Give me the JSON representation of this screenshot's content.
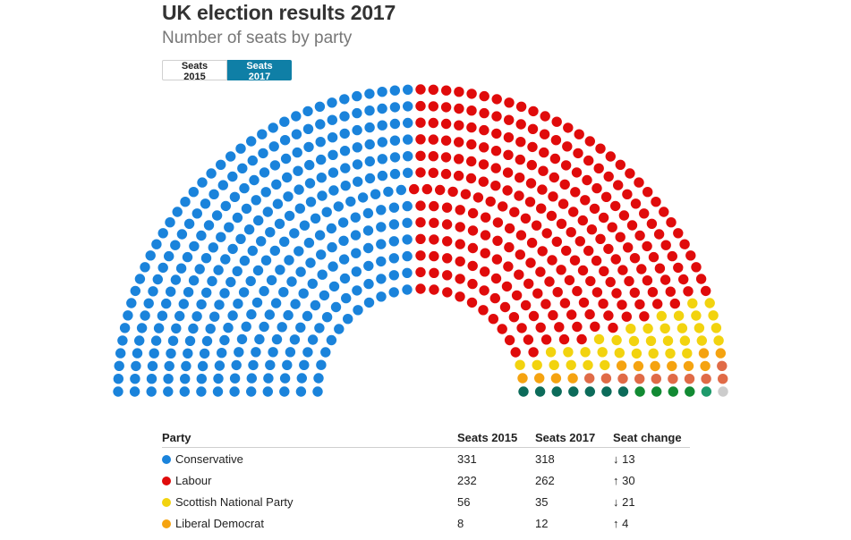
{
  "header": {
    "title": "UK election results 2017",
    "subtitle": "Number of seats by party"
  },
  "toggle": {
    "options": [
      "Seats 2015",
      "Seats 2017"
    ],
    "selected": "Seats 2017"
  },
  "table": {
    "headers": [
      "Party",
      "Seats 2015",
      "Seats 2017",
      "Seat change"
    ],
    "rows": [
      {
        "party": "Conservative",
        "color": "#1a83db",
        "seats2015": "331",
        "seats2017": "318",
        "change": "↓ 13",
        "direction": "down"
      },
      {
        "party": "Labour",
        "color": "#e00b0b",
        "seats2015": "232",
        "seats2017": "262",
        "change": "↑ 30",
        "direction": "up"
      },
      {
        "party": "Scottish National Party",
        "color": "#f2d30f",
        "seats2015": "56",
        "seats2017": "35",
        "change": "↓ 21",
        "direction": "down"
      },
      {
        "party": "Liberal Democrat",
        "color": "#f5a310",
        "seats2015": "8",
        "seats2017": "12",
        "change": "↑ 4",
        "direction": "up"
      }
    ]
  },
  "chart_data": {
    "type": "parliament",
    "title": "UK election results 2017",
    "subtitle": "Number of seats by party",
    "total_seats": 650,
    "series": [
      {
        "name": "Conservative",
        "seats": 318,
        "color": "#1a83db"
      },
      {
        "name": "Labour",
        "seats": 262,
        "color": "#e00b0b"
      },
      {
        "name": "Scottish National Party",
        "seats": 35,
        "color": "#f2d30f"
      },
      {
        "name": "Liberal Democrat",
        "seats": 12,
        "color": "#f5a310"
      },
      {
        "seats": 10,
        "color": "#e06b47"
      },
      {
        "seats": 7,
        "color": "#0c6b5a"
      },
      {
        "seats": 4,
        "color": "#128a33"
      },
      {
        "seats": 1,
        "color": "#1f9a6b"
      },
      {
        "seats": 1,
        "color": "#cccccc"
      }
    ]
  }
}
